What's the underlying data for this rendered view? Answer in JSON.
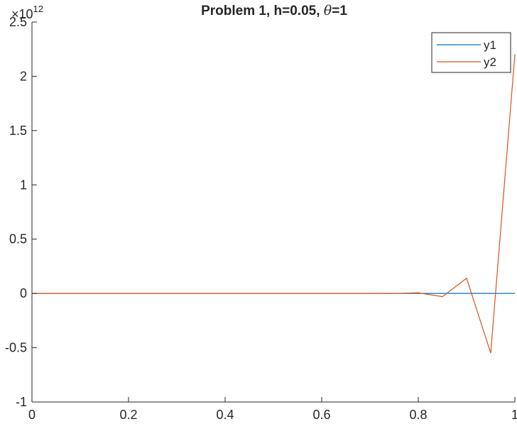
{
  "chart_data": {
    "type": "line",
    "title": "Problem 1, h=0.05, θ=1",
    "title_parts": {
      "prefix": "Problem 1, h=0.05, ",
      "symbol": "θ",
      "suffix": "=1"
    },
    "xlabel": "",
    "ylabel": "",
    "xlim": [
      0,
      1
    ],
    "ylim": [
      -1,
      2.5
    ],
    "x_ticks": [
      0,
      0.2,
      0.4,
      0.6,
      0.8,
      1
    ],
    "x_tick_labels": [
      "0",
      "0.2",
      "0.4",
      "0.6",
      "0.8",
      "1"
    ],
    "y_ticks": [
      -1,
      -0.5,
      0,
      0.5,
      1,
      1.5,
      2,
      2.5
    ],
    "y_tick_labels": [
      "-1",
      "-0.5",
      "0",
      "0.5",
      "1",
      "1.5",
      "2",
      "2.5"
    ],
    "y_exponent": {
      "base": "×10",
      "power": "12"
    },
    "grid": false,
    "legend_position": "top-right",
    "x": [
      0,
      0.05,
      0.1,
      0.15,
      0.2,
      0.25,
      0.3,
      0.35,
      0.4,
      0.45,
      0.5,
      0.55,
      0.6,
      0.65,
      0.7,
      0.75,
      0.8,
      0.85,
      0.9,
      0.95,
      1
    ],
    "series": [
      {
        "name": "y1",
        "color": "#0072BD",
        "values": [
          0,
          0,
          0,
          0,
          0,
          0,
          0,
          0,
          0,
          0,
          0,
          0,
          0,
          0,
          0,
          0,
          0,
          0,
          0,
          0,
          0
        ]
      },
      {
        "name": "y2",
        "color": "#D95319",
        "values": [
          0,
          0,
          0,
          0,
          0,
          0,
          0,
          0,
          0,
          0,
          0,
          0,
          0,
          0,
          0.0001,
          -0.0005,
          0.006,
          -0.03,
          0.14,
          -0.55,
          2.2
        ]
      }
    ]
  }
}
